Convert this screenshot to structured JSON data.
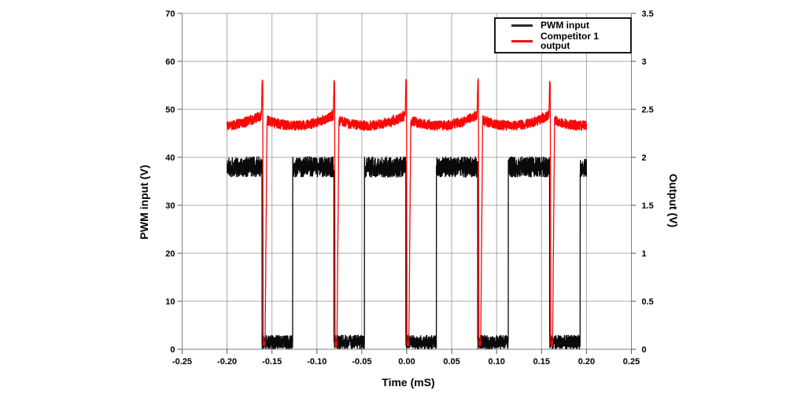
{
  "chart_data": {
    "type": "line",
    "title": "",
    "xlabel": "Time (mS)",
    "ylabel_left": "PWM input (V)",
    "ylabel_right": "Output (V)",
    "grid": true,
    "x_axis": {
      "min": -0.25,
      "max": 0.25,
      "tick_values": [
        -0.25,
        -0.2,
        -0.15,
        -0.1,
        -0.05,
        0.0,
        0.05,
        0.1,
        0.15,
        0.2,
        0.25
      ],
      "tick_labels": [
        "-0.25",
        "-0.20",
        "-0.15",
        "-0.10",
        "-0.05",
        "0.00",
        "0.05",
        "0.10",
        "0.15",
        "0.20",
        "0.25"
      ]
    },
    "y_axis_left": {
      "min": 0,
      "max": 70,
      "tick_values": [
        0,
        10,
        20,
        30,
        40,
        50,
        60,
        70
      ],
      "tick_labels": [
        "0",
        "10",
        "20",
        "30",
        "40",
        "50",
        "60",
        "70"
      ]
    },
    "y_axis_right": {
      "min": 0,
      "max": 3.5,
      "tick_values": [
        0,
        0.5,
        1,
        1.5,
        2,
        2.5,
        3,
        3.5
      ],
      "tick_labels": [
        "0",
        "0.5",
        "1",
        "1.5",
        "2",
        "2.5",
        "3",
        "3.5"
      ]
    },
    "colors": {
      "pwm": "#0a0a0a",
      "output": "#f90808",
      "grid": "#a8a8a8",
      "axis": "#808080",
      "tick": "#595959",
      "text": "#000000",
      "legend_border": "#1a1a1a"
    },
    "legend": {
      "position": "top-right",
      "entries": [
        {
          "label": "PWM input",
          "color": "#2b2b2b"
        },
        {
          "label": "Competitor 1 output",
          "color": "#f90808"
        }
      ]
    },
    "series": [
      {
        "name": "PWM input",
        "axis": "left",
        "color": "#0a0a0a",
        "type": "pwm_square_wave",
        "time_span": [
          -0.2,
          0.2
        ],
        "initial_state": "high",
        "high_level": 38.0,
        "low_level": 1.5,
        "high_noise": 2.2,
        "low_noise": 1.5,
        "period_ms": 0.08,
        "falling_edges": [
          -0.161,
          -0.081,
          -0.001,
          0.079,
          0.159
        ],
        "rising_edges": [
          -0.127,
          -0.047,
          0.033,
          0.113,
          0.193
        ]
      },
      {
        "name": "Competitor 1 output",
        "axis": "right",
        "color": "#f90808",
        "type": "noisy_dc_with_switching_spikes",
        "time_span": [
          -0.2,
          0.2
        ],
        "baseline_left_units": 47.7,
        "baseline_right_units": 2.39,
        "ripple_min": 46.6,
        "ripple_max": 48.9,
        "ripple_period_ms": 0.08,
        "noise": 1.1,
        "spike_times": [
          -0.1605,
          -0.0805,
          -0.0005,
          0.0795,
          0.1595
        ],
        "spike_peak_left_units": 56.5,
        "spike_peak_right_units": 2.83,
        "spike_trough_left_units": 0.5,
        "recovery_ms": 0.005
      }
    ]
  }
}
